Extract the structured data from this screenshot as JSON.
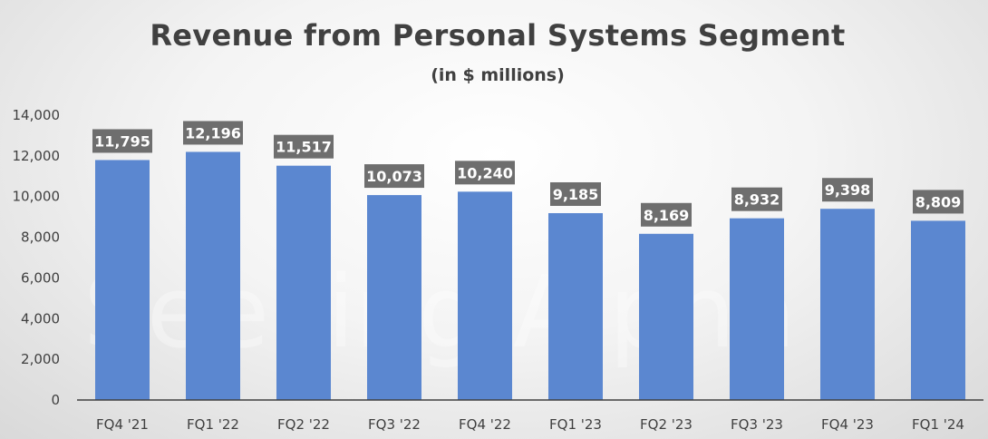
{
  "title": "Revenue from Personal Systems Segment",
  "subtitle": "(in $ millions)",
  "watermark": "Seeking Alpha",
  "colors": {
    "bar": "#5b87d0",
    "label_box": "#6e6e6e",
    "axis": "#404040",
    "text": "#404040"
  },
  "chart_data": {
    "type": "bar",
    "title": "Revenue from Personal Systems Segment",
    "subtitle": "(in $ millions)",
    "categories": [
      "FQ4 '21",
      "FQ1 '22",
      "FQ2 '22",
      "FQ3 '22",
      "FQ4 '22",
      "FQ1 '23",
      "FQ2 '23",
      "FQ3 '23",
      "FQ4 '23",
      "FQ1 '24"
    ],
    "values": [
      11795,
      12196,
      11517,
      10073,
      10240,
      9185,
      8169,
      8932,
      9398,
      8809
    ],
    "data_labels": [
      "11,795",
      "12,196",
      "11,517",
      "10,073",
      "10,240",
      "9,185",
      "8,169",
      "8,932",
      "9,398",
      "8,809"
    ],
    "yticks": [
      "0",
      "2,000",
      "4,000",
      "6,000",
      "8,000",
      "10,000",
      "12,000",
      "14,000"
    ],
    "ylim": [
      0,
      14000
    ],
    "grid": false,
    "legend": "none"
  }
}
